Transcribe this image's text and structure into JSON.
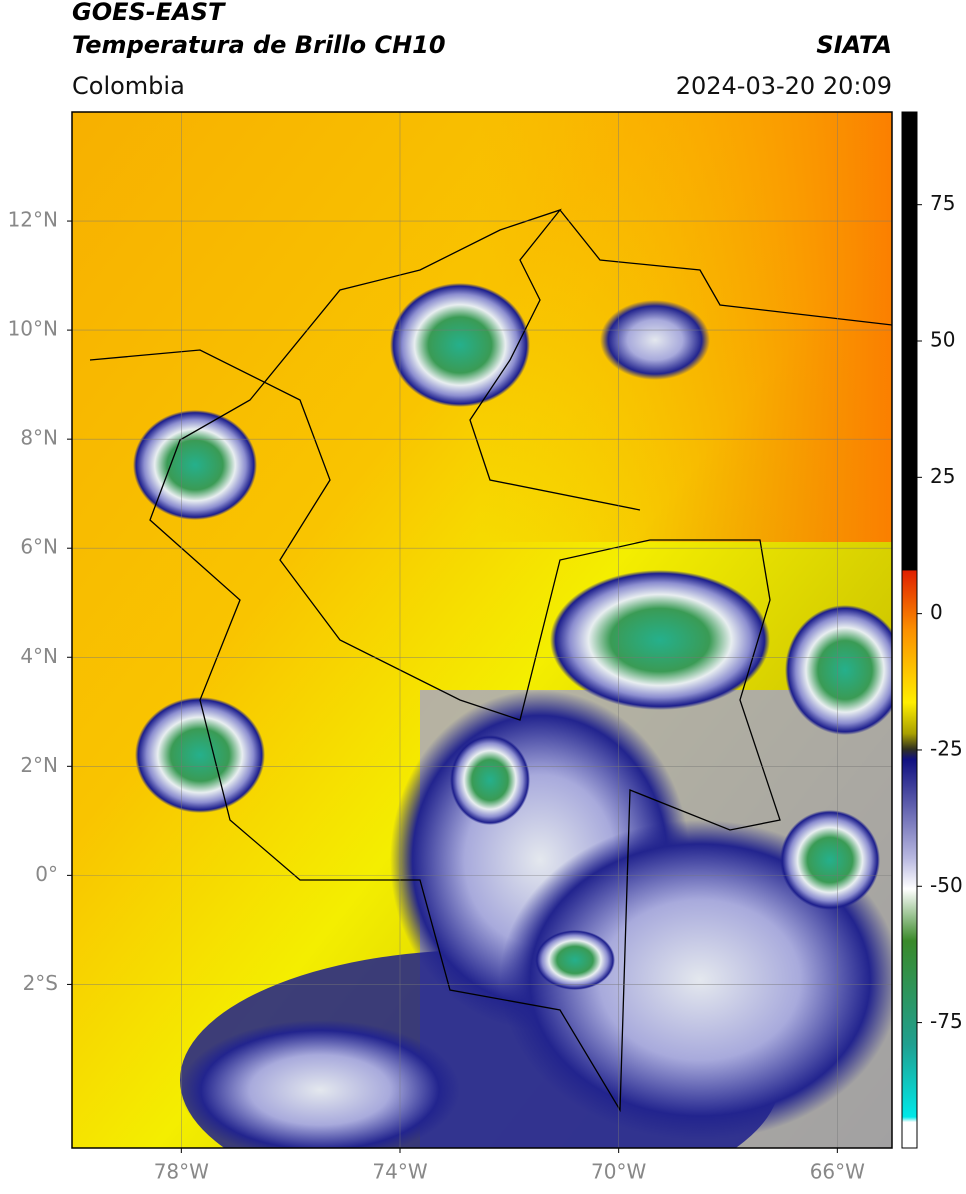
{
  "header": {
    "title": "GOES-EAST",
    "subtitle": "Temperatura de Brillo CH10",
    "region": "Colombia",
    "source": "SIATA",
    "datetime": "2024-03-20 20:09"
  },
  "map": {
    "lonlim": [
      -80,
      -65
    ],
    "latlim": [
      -5,
      14
    ],
    "grid": true,
    "xticks": [
      {
        "value": -78,
        "label": "78°W"
      },
      {
        "value": -74,
        "label": "74°W"
      },
      {
        "value": -70,
        "label": "70°W"
      },
      {
        "value": -66,
        "label": "66°W"
      }
    ],
    "yticks": [
      {
        "value": 12,
        "label": "12°N"
      },
      {
        "value": 10,
        "label": "10°N"
      },
      {
        "value": 8,
        "label": "8°N"
      },
      {
        "value": 6,
        "label": "6°N"
      },
      {
        "value": 4,
        "label": "4°N"
      },
      {
        "value": 2,
        "label": "2°N"
      },
      {
        "value": 0,
        "label": "0°"
      },
      {
        "value": -2,
        "label": "2°S"
      }
    ]
  },
  "colorbar": {
    "lim": [
      -98,
      92
    ],
    "ticks": [
      75,
      50,
      25,
      0,
      -25,
      -50,
      -75
    ]
  }
}
